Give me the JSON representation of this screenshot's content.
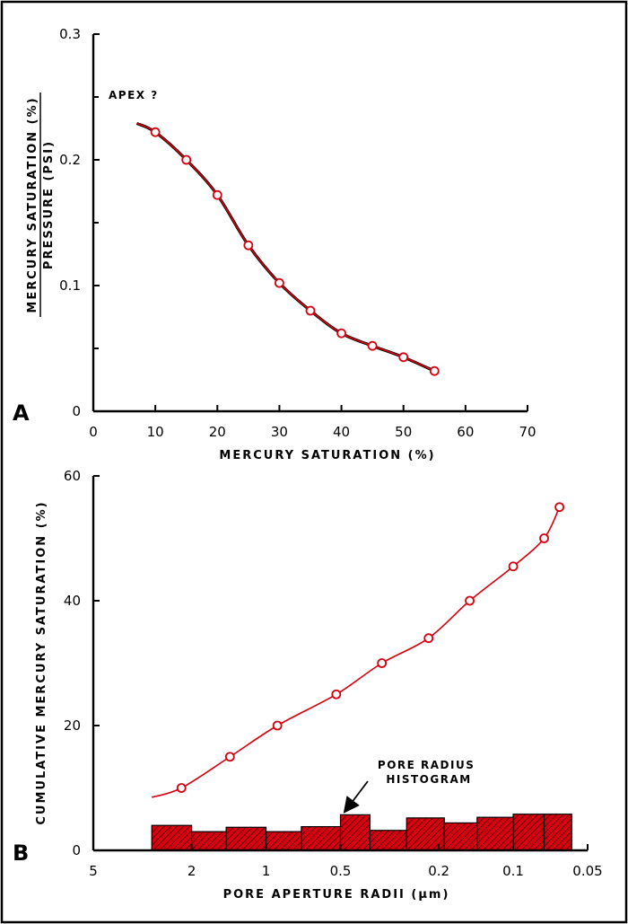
{
  "colors": {
    "series": "#d6000f",
    "axis": "#000000",
    "background": "#ffffff"
  },
  "chart_data": [
    {
      "type": "line",
      "panel_label": "A",
      "xlabel": "MERCURY SATURATION (%)",
      "ylabel_numerator": "MERCURY SATURATION (%)",
      "ylabel_denominator": "PRESSURE (PSI)",
      "xlim": [
        0,
        70
      ],
      "ylim": [
        0,
        0.3
      ],
      "x_ticks": [
        0,
        10,
        20,
        30,
        40,
        50,
        60,
        70
      ],
      "x_tick_labels": [
        "0",
        "10",
        "20",
        "30",
        "40",
        "50",
        "60",
        "70"
      ],
      "y_ticks": [
        0,
        0.1,
        0.2,
        0.3
      ],
      "y_tick_labels": [
        "0",
        "0.1",
        "0.2",
        "0.3"
      ],
      "annotation": "APEX ?",
      "grid": false,
      "series": [
        {
          "x": [
            10,
            15,
            20,
            25,
            30,
            35,
            40,
            45,
            50,
            55
          ],
          "y": [
            0.222,
            0.2,
            0.172,
            0.132,
            0.102,
            0.08,
            0.062,
            0.052,
            0.043,
            0.032
          ]
        }
      ],
      "curve_extension_start": {
        "x": 7,
        "y": 0.229
      }
    },
    {
      "type": "line",
      "panel_label": "B",
      "xlabel": "PORE APERTURE RADII (μm)",
      "ylabel": "CUMULATIVE MERCURY SATURATION (%)",
      "x_scale": "log-reversed",
      "xlim": [
        5,
        0.05
      ],
      "ylim": [
        0,
        60
      ],
      "x_ticks": [
        5,
        2,
        1,
        0.5,
        0.2,
        0.1,
        0.05
      ],
      "x_tick_labels": [
        "5",
        "2",
        "1",
        "0.5",
        "0.2",
        "0.1",
        "0.05"
      ],
      "y_ticks": [
        0,
        20,
        40,
        60
      ],
      "y_tick_labels": [
        "0",
        "20",
        "40",
        "60"
      ],
      "annotation": "PORE RADIUS HISTOGRAM",
      "grid": false,
      "series": [
        {
          "x": [
            2.2,
            1.4,
            0.9,
            0.52,
            0.34,
            0.22,
            0.15,
            0.1,
            0.075,
            0.065
          ],
          "y": [
            10,
            15,
            20,
            25,
            30,
            34,
            40,
            45.5,
            50,
            55
          ]
        }
      ],
      "curve_extension_start": {
        "x": 2.9,
        "y": 8.5
      },
      "histogram": {
        "bin_edges": [
          2.9,
          2.0,
          1.45,
          1.0,
          0.72,
          0.5,
          0.38,
          0.27,
          0.19,
          0.14,
          0.1,
          0.075,
          0.058
        ],
        "values": [
          4,
          3,
          3.7,
          3,
          3.8,
          5.7,
          3.2,
          5.2,
          4.4,
          5.3,
          5.8,
          5.8
        ]
      }
    }
  ]
}
